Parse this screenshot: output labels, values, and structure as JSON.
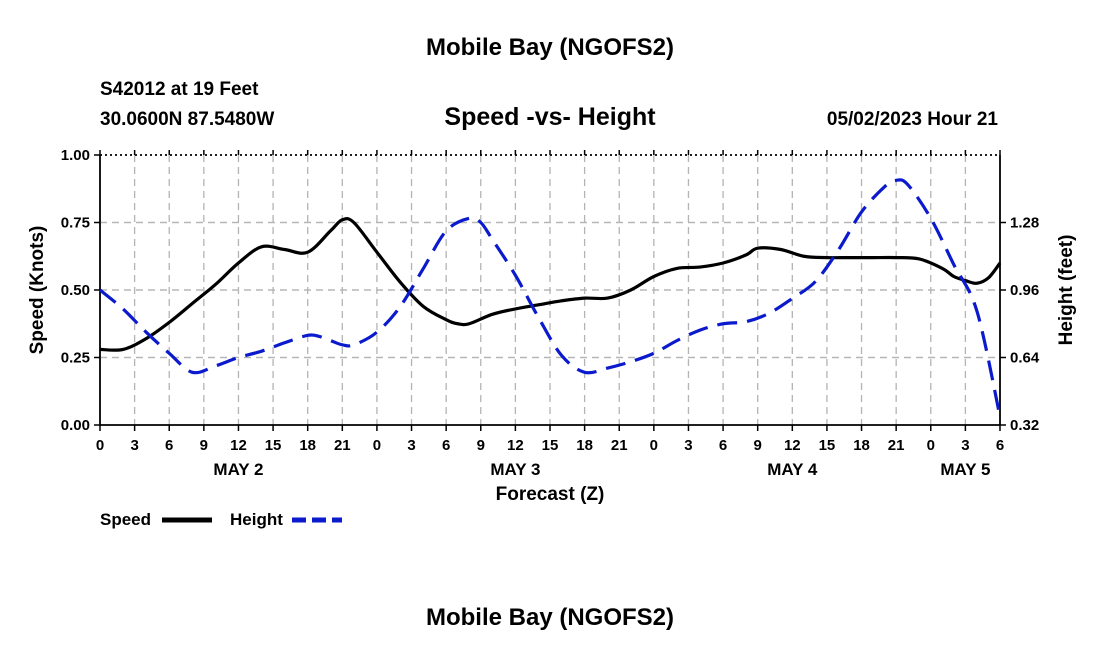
{
  "page": {
    "title_top": "Mobile Bay (NGOFS2)",
    "title_bottom": "Mobile Bay (NGOFS2)"
  },
  "header": {
    "station": "S42012 at 19 Feet",
    "coords": "30.0600N  87.5480W",
    "chart_title": "Speed -vs- Height",
    "datetime": "05/02/2023 Hour 21"
  },
  "chart_data": {
    "type": "line",
    "title": "Speed -vs- Height",
    "xlabel": "Forecast (Z)",
    "ylabel_left": "Speed (Knots)",
    "ylabel_right": "Height (feet)",
    "x_hours_range": [
      0,
      78
    ],
    "ylim_left": [
      0,
      1.0
    ],
    "ylim_right": [
      0.32,
      1.6
    ],
    "grid": true,
    "x_tick_labels": [
      "0",
      "3",
      "6",
      "9",
      "12",
      "15",
      "18",
      "21",
      "0",
      "3",
      "6",
      "9",
      "12",
      "15",
      "18",
      "21",
      "0",
      "3",
      "6",
      "9",
      "12",
      "15",
      "18",
      "21",
      "0",
      "3",
      "6"
    ],
    "day_labels": [
      {
        "label": "MAY 2",
        "hour": 12
      },
      {
        "label": "MAY 3",
        "hour": 36
      },
      {
        "label": "MAY 4",
        "hour": 60
      },
      {
        "label": "MAY 5",
        "hour": 75
      }
    ],
    "y_left_ticks": [
      "0.00",
      "0.25",
      "0.50",
      "0.75",
      "1.00"
    ],
    "y_right_ticks": [
      "0.32",
      "0.64",
      "0.96",
      "1.28"
    ],
    "series": [
      {
        "name": "Speed",
        "axis": "left",
        "color": "#000000",
        "dash": "solid",
        "points": [
          [
            0,
            0.28
          ],
          [
            2,
            0.28
          ],
          [
            4,
            0.32
          ],
          [
            6,
            0.38
          ],
          [
            8,
            0.45
          ],
          [
            10,
            0.52
          ],
          [
            12,
            0.6
          ],
          [
            14,
            0.66
          ],
          [
            16,
            0.65
          ],
          [
            18,
            0.64
          ],
          [
            20,
            0.72
          ],
          [
            21,
            0.76
          ],
          [
            22,
            0.75
          ],
          [
            24,
            0.64
          ],
          [
            26,
            0.53
          ],
          [
            28,
            0.44
          ],
          [
            30,
            0.39
          ],
          [
            31,
            0.375
          ],
          [
            32,
            0.375
          ],
          [
            34,
            0.41
          ],
          [
            36,
            0.43
          ],
          [
            38,
            0.445
          ],
          [
            40,
            0.46
          ],
          [
            42,
            0.47
          ],
          [
            44,
            0.47
          ],
          [
            46,
            0.5
          ],
          [
            48,
            0.55
          ],
          [
            50,
            0.58
          ],
          [
            52,
            0.585
          ],
          [
            54,
            0.6
          ],
          [
            56,
            0.63
          ],
          [
            57,
            0.655
          ],
          [
            59,
            0.65
          ],
          [
            61,
            0.625
          ],
          [
            63,
            0.62
          ],
          [
            65,
            0.62
          ],
          [
            67,
            0.62
          ],
          [
            69,
            0.62
          ],
          [
            71,
            0.615
          ],
          [
            73,
            0.58
          ],
          [
            74,
            0.55
          ],
          [
            75,
            0.535
          ],
          [
            76,
            0.525
          ],
          [
            77,
            0.545
          ],
          [
            78,
            0.6
          ]
        ]
      },
      {
        "name": "Height",
        "axis": "right",
        "color": "#0a1acc",
        "dash": "dashed",
        "points": [
          [
            0,
            0.96
          ],
          [
            2,
            0.87
          ],
          [
            4,
            0.76
          ],
          [
            6,
            0.66
          ],
          [
            8,
            0.57
          ],
          [
            10,
            0.6
          ],
          [
            12,
            0.64
          ],
          [
            14,
            0.67
          ],
          [
            16,
            0.71
          ],
          [
            18,
            0.745
          ],
          [
            19,
            0.74
          ],
          [
            20,
            0.72
          ],
          [
            21,
            0.7
          ],
          [
            22,
            0.7
          ],
          [
            24,
            0.76
          ],
          [
            26,
            0.88
          ],
          [
            28,
            1.06
          ],
          [
            30,
            1.24
          ],
          [
            32,
            1.3
          ],
          [
            33,
            1.28
          ],
          [
            34,
            1.2
          ],
          [
            36,
            1.03
          ],
          [
            38,
            0.83
          ],
          [
            40,
            0.65
          ],
          [
            42,
            0.57
          ],
          [
            44,
            0.59
          ],
          [
            46,
            0.62
          ],
          [
            48,
            0.66
          ],
          [
            50,
            0.72
          ],
          [
            52,
            0.77
          ],
          [
            54,
            0.8
          ],
          [
            56,
            0.81
          ],
          [
            58,
            0.85
          ],
          [
            60,
            0.92
          ],
          [
            62,
            1.0
          ],
          [
            64,
            1.15
          ],
          [
            66,
            1.33
          ],
          [
            68,
            1.45
          ],
          [
            69,
            1.48
          ],
          [
            70,
            1.46
          ],
          [
            72,
            1.3
          ],
          [
            74,
            1.08
          ],
          [
            76,
            0.86
          ],
          [
            78,
            0.36
          ]
        ]
      }
    ]
  },
  "legend": {
    "speed_label": "Speed",
    "height_label": "Height",
    "speed_color": "#000000",
    "height_color": "#0a1acc"
  }
}
